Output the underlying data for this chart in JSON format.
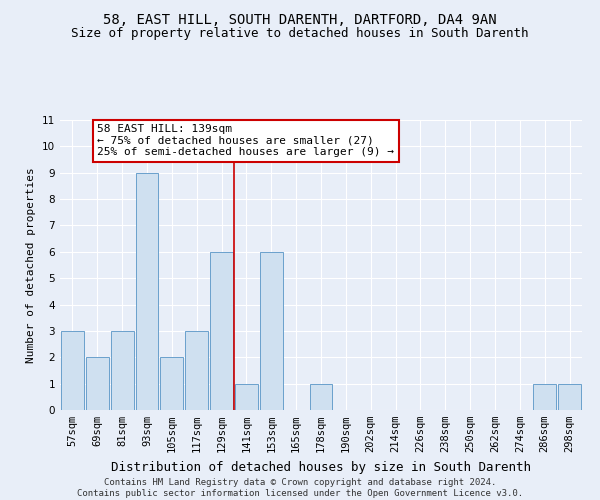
{
  "title1": "58, EAST HILL, SOUTH DARENTH, DARTFORD, DA4 9AN",
  "title2": "Size of property relative to detached houses in South Darenth",
  "xlabel": "Distribution of detached houses by size in South Darenth",
  "ylabel": "Number of detached properties",
  "categories": [
    "57sqm",
    "69sqm",
    "81sqm",
    "93sqm",
    "105sqm",
    "117sqm",
    "129sqm",
    "141sqm",
    "153sqm",
    "165sqm",
    "178sqm",
    "190sqm",
    "202sqm",
    "214sqm",
    "226sqm",
    "238sqm",
    "250sqm",
    "262sqm",
    "274sqm",
    "286sqm",
    "298sqm"
  ],
  "values": [
    3,
    2,
    3,
    9,
    2,
    3,
    6,
    1,
    6,
    0,
    1,
    0,
    0,
    0,
    0,
    0,
    0,
    0,
    0,
    1,
    1
  ],
  "bar_color": "#cfe0f0",
  "bar_edge_color": "#6aa0cc",
  "highlight_line_index": 7,
  "highlight_line_color": "#cc0000",
  "annotation_text": "58 EAST HILL: 139sqm\n← 75% of detached houses are smaller (27)\n25% of semi-detached houses are larger (9) →",
  "annotation_box_facecolor": "white",
  "annotation_box_edgecolor": "#cc0000",
  "ylim": [
    0,
    11
  ],
  "yticks": [
    0,
    1,
    2,
    3,
    4,
    5,
    6,
    7,
    8,
    9,
    10,
    11
  ],
  "background_color": "#e8eef8",
  "grid_color": "#ffffff",
  "footnote": "Contains HM Land Registry data © Crown copyright and database right 2024.\nContains public sector information licensed under the Open Government Licence v3.0.",
  "title1_fontsize": 10,
  "title2_fontsize": 9,
  "xlabel_fontsize": 9,
  "ylabel_fontsize": 8,
  "tick_fontsize": 7.5,
  "annotation_fontsize": 8,
  "footnote_fontsize": 6.5
}
